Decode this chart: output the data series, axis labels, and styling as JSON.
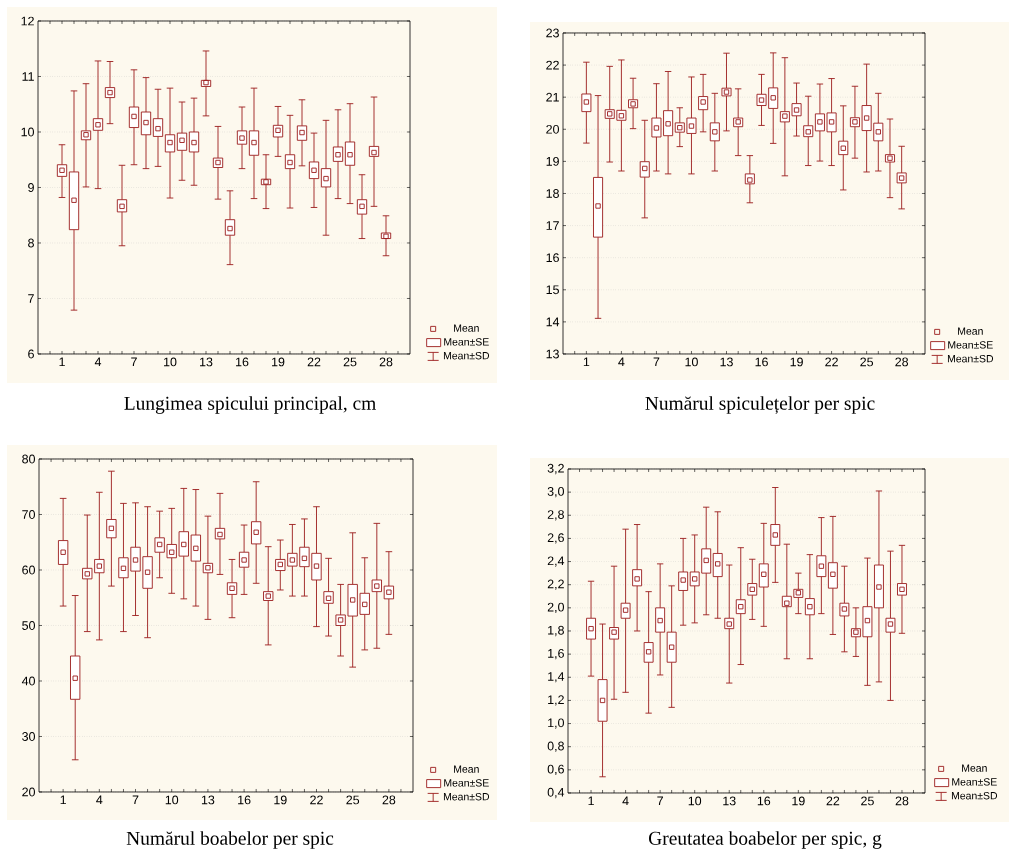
{
  "chart_data": [
    {
      "type": "box",
      "title": "Lungimea spicului principal, cm",
      "color": "#9b1c1c",
      "marker": "square",
      "grid": "y",
      "categories": [
        "1",
        null,
        null,
        "4",
        null,
        null,
        "7",
        null,
        null,
        "10",
        null,
        null,
        "13",
        null,
        null,
        "16",
        null,
        null,
        "19",
        null,
        null,
        "22",
        null,
        null,
        "25",
        null,
        null,
        "28"
      ],
      "ylim": [
        6,
        12
      ],
      "yticks": [
        6,
        7,
        8,
        9,
        10,
        11,
        12
      ],
      "annotations": [
        "Mean",
        "Mean±SE",
        "Mean±SD"
      ],
      "boxes": [
        {
          "low": 8.82,
          "q1": 9.2,
          "mean": 9.31,
          "q3": 9.41,
          "high": 9.77
        },
        {
          "low": 6.79,
          "q1": 8.24,
          "mean": 8.77,
          "q3": 9.28,
          "high": 10.74
        },
        {
          "low": 9.01,
          "q1": 9.86,
          "mean": 9.95,
          "q3": 10.02,
          "high": 10.87
        },
        {
          "low": 8.98,
          "q1": 10.03,
          "mean": 10.13,
          "q3": 10.24,
          "high": 11.28
        },
        {
          "low": 10.15,
          "q1": 10.62,
          "mean": 10.71,
          "q3": 10.8,
          "high": 11.27
        },
        {
          "low": 7.95,
          "q1": 8.56,
          "mean": 8.66,
          "q3": 8.78,
          "high": 9.4
        },
        {
          "low": 9.41,
          "q1": 10.08,
          "mean": 10.28,
          "q3": 10.45,
          "high": 11.12
        },
        {
          "low": 9.34,
          "q1": 9.95,
          "mean": 10.17,
          "q3": 10.36,
          "high": 10.98
        },
        {
          "low": 9.38,
          "q1": 9.92,
          "mean": 10.06,
          "q3": 10.24,
          "high": 10.77
        },
        {
          "low": 8.81,
          "q1": 9.64,
          "mean": 9.81,
          "q3": 9.95,
          "high": 10.79
        },
        {
          "low": 9.13,
          "q1": 9.67,
          "mean": 9.85,
          "q3": 9.98,
          "high": 10.54
        },
        {
          "low": 9.04,
          "q1": 9.64,
          "mean": 9.81,
          "q3": 10.0,
          "high": 10.61
        },
        {
          "low": 10.29,
          "q1": 10.82,
          "mean": 10.89,
          "q3": 10.93,
          "high": 11.46
        },
        {
          "low": 8.79,
          "q1": 9.36,
          "mean": 9.45,
          "q3": 9.53,
          "high": 10.1
        },
        {
          "low": 7.61,
          "q1": 8.14,
          "mean": 8.26,
          "q3": 8.42,
          "high": 8.94
        },
        {
          "low": 9.34,
          "q1": 9.78,
          "mean": 9.89,
          "q3": 10.02,
          "high": 10.45
        },
        {
          "low": 8.8,
          "q1": 9.58,
          "mean": 9.81,
          "q3": 10.02,
          "high": 10.79
        },
        {
          "low": 8.62,
          "q1": 9.05,
          "mean": 9.1,
          "q3": 9.15,
          "high": 9.59
        },
        {
          "low": 9.56,
          "q1": 9.91,
          "mean": 10.03,
          "q3": 10.12,
          "high": 10.46
        },
        {
          "low": 8.63,
          "q1": 9.34,
          "mean": 9.45,
          "q3": 9.59,
          "high": 10.3
        },
        {
          "low": 9.39,
          "q1": 9.85,
          "mean": 9.99,
          "q3": 10.11,
          "high": 10.58
        },
        {
          "low": 8.64,
          "q1": 9.16,
          "mean": 9.31,
          "q3": 9.46,
          "high": 9.98
        },
        {
          "low": 8.14,
          "q1": 9.01,
          "mean": 9.16,
          "q3": 9.34,
          "high": 10.21
        },
        {
          "low": 8.8,
          "q1": 9.47,
          "mean": 9.59,
          "q3": 9.73,
          "high": 10.4
        },
        {
          "low": 8.71,
          "q1": 9.4,
          "mean": 9.59,
          "q3": 9.82,
          "high": 10.51
        },
        {
          "low": 8.08,
          "q1": 8.52,
          "mean": 8.66,
          "q3": 8.78,
          "high": 9.23
        },
        {
          "low": 8.66,
          "q1": 9.56,
          "mean": 9.63,
          "q3": 9.74,
          "high": 10.63
        },
        {
          "low": 7.77,
          "q1": 8.08,
          "mean": 8.12,
          "q3": 8.18,
          "high": 8.49
        }
      ]
    },
    {
      "type": "box",
      "title": "Numărul spiculețelor per spic",
      "color": "#9b1c1c",
      "marker": "square",
      "grid": "y",
      "categories": [
        "1",
        null,
        null,
        "4",
        null,
        null,
        "7",
        null,
        null,
        "10",
        null,
        null,
        "13",
        null,
        null,
        "16",
        null,
        null,
        "19",
        null,
        null,
        "22",
        null,
        null,
        "25",
        null,
        null,
        "28"
      ],
      "ylim": [
        13,
        23
      ],
      "yticks": [
        13,
        14,
        15,
        16,
        17,
        18,
        19,
        20,
        21,
        22,
        23
      ],
      "annotations": [
        "Mean",
        "Mean±SE",
        "Mean±SD"
      ],
      "boxes": [
        {
          "low": 19.57,
          "q1": 20.55,
          "mean": 20.85,
          "q3": 21.1,
          "high": 22.09
        },
        {
          "low": 14.11,
          "q1": 16.64,
          "mean": 17.61,
          "q3": 18.5,
          "high": 21.05
        },
        {
          "low": 18.98,
          "q1": 20.34,
          "mean": 20.48,
          "q3": 20.61,
          "high": 21.96
        },
        {
          "low": 18.7,
          "q1": 20.28,
          "mean": 20.42,
          "q3": 20.59,
          "high": 22.16
        },
        {
          "low": 20.02,
          "q1": 20.67,
          "mean": 20.79,
          "q3": 20.92,
          "high": 21.59
        },
        {
          "low": 17.24,
          "q1": 18.51,
          "mean": 18.78,
          "q3": 18.99,
          "high": 20.28
        },
        {
          "low": 18.7,
          "q1": 19.76,
          "mean": 20.04,
          "q3": 20.35,
          "high": 21.42
        },
        {
          "low": 18.61,
          "q1": 19.8,
          "mean": 20.17,
          "q3": 20.58,
          "high": 21.8
        },
        {
          "low": 19.46,
          "q1": 19.91,
          "mean": 20.05,
          "q3": 20.2,
          "high": 20.67
        },
        {
          "low": 18.61,
          "q1": 19.87,
          "mean": 20.1,
          "q3": 20.35,
          "high": 21.63
        },
        {
          "low": 19.92,
          "q1": 20.61,
          "mean": 20.85,
          "q3": 21.02,
          "high": 21.71
        },
        {
          "low": 18.7,
          "q1": 19.64,
          "mean": 19.92,
          "q3": 20.2,
          "high": 21.12
        },
        {
          "low": 19.95,
          "q1": 21.04,
          "mean": 21.16,
          "q3": 21.28,
          "high": 22.37
        },
        {
          "low": 19.18,
          "q1": 20.08,
          "mean": 20.23,
          "q3": 20.35,
          "high": 21.26
        },
        {
          "low": 17.71,
          "q1": 18.3,
          "mean": 18.42,
          "q3": 18.61,
          "high": 19.18
        },
        {
          "low": 20.12,
          "q1": 20.74,
          "mean": 20.91,
          "q3": 21.09,
          "high": 21.71
        },
        {
          "low": 19.56,
          "q1": 20.65,
          "mean": 20.98,
          "q3": 21.29,
          "high": 22.38
        },
        {
          "low": 18.55,
          "q1": 20.23,
          "mean": 20.41,
          "q3": 20.55,
          "high": 22.23
        },
        {
          "low": 19.79,
          "q1": 20.42,
          "mean": 20.6,
          "q3": 20.8,
          "high": 21.44
        },
        {
          "low": 18.87,
          "q1": 19.77,
          "mean": 19.92,
          "q3": 20.11,
          "high": 21.03
        },
        {
          "low": 19.01,
          "q1": 19.95,
          "mean": 20.23,
          "q3": 20.48,
          "high": 21.41
        },
        {
          "low": 18.87,
          "q1": 19.92,
          "mean": 20.23,
          "q3": 20.51,
          "high": 21.58
        },
        {
          "low": 18.11,
          "q1": 19.21,
          "mean": 19.41,
          "q3": 19.63,
          "high": 20.73
        },
        {
          "low": 19.1,
          "q1": 20.08,
          "mean": 20.23,
          "q3": 20.36,
          "high": 21.34
        },
        {
          "low": 18.67,
          "q1": 19.96,
          "mean": 20.35,
          "q3": 20.74,
          "high": 22.03
        },
        {
          "low": 18.7,
          "q1": 19.64,
          "mean": 19.92,
          "q3": 20.19,
          "high": 21.12
        },
        {
          "low": 17.87,
          "q1": 18.98,
          "mean": 19.1,
          "q3": 19.21,
          "high": 20.32
        },
        {
          "low": 17.52,
          "q1": 18.33,
          "mean": 18.48,
          "q3": 18.64,
          "high": 19.47
        }
      ]
    },
    {
      "type": "box",
      "title": "Numărul boabelor per spic",
      "color": "#9b1c1c",
      "marker": "square",
      "grid": "y",
      "categories": [
        "1",
        null,
        null,
        "4",
        null,
        null,
        "7",
        null,
        null,
        "10",
        null,
        null,
        "13",
        null,
        null,
        "16",
        null,
        null,
        "19",
        null,
        null,
        "22",
        null,
        null,
        "25",
        null,
        null,
        "28"
      ],
      "ylim": [
        20,
        80
      ],
      "yticks": [
        20,
        30,
        40,
        50,
        60,
        70,
        80
      ],
      "annotations": [
        "Mean",
        "Mean±SE",
        "Mean±SD"
      ],
      "boxes": [
        {
          "low": 53.5,
          "q1": 61.0,
          "mean": 63.2,
          "q3": 65.3,
          "high": 72.9
        },
        {
          "low": 25.8,
          "q1": 36.7,
          "mean": 40.5,
          "q3": 44.5,
          "high": 55.4
        },
        {
          "low": 48.9,
          "q1": 58.4,
          "mean": 59.3,
          "q3": 60.3,
          "high": 69.9
        },
        {
          "low": 47.4,
          "q1": 59.5,
          "mean": 60.7,
          "q3": 61.9,
          "high": 74.0
        },
        {
          "low": 57.1,
          "q1": 65.8,
          "mean": 67.5,
          "q3": 69.1,
          "high": 77.8
        },
        {
          "low": 48.9,
          "q1": 58.6,
          "mean": 60.3,
          "q3": 62.2,
          "high": 72.0
        },
        {
          "low": 51.8,
          "q1": 59.8,
          "mean": 61.8,
          "q3": 64.1,
          "high": 72.1
        },
        {
          "low": 47.8,
          "q1": 56.7,
          "mean": 59.6,
          "q3": 62.4,
          "high": 71.4
        },
        {
          "low": 58.6,
          "q1": 63.2,
          "mean": 64.6,
          "q3": 65.8,
          "high": 70.6
        },
        {
          "low": 55.8,
          "q1": 62.2,
          "mean": 63.2,
          "q3": 64.6,
          "high": 71.1
        },
        {
          "low": 54.8,
          "q1": 62.5,
          "mean": 64.6,
          "q3": 66.9,
          "high": 74.7
        },
        {
          "low": 53.5,
          "q1": 61.6,
          "mean": 63.9,
          "q3": 66.3,
          "high": 74.5
        },
        {
          "low": 51.1,
          "q1": 59.5,
          "mean": 60.4,
          "q3": 61.2,
          "high": 69.7
        },
        {
          "low": 59.2,
          "q1": 65.6,
          "mean": 66.4,
          "q3": 67.5,
          "high": 73.8
        },
        {
          "low": 51.4,
          "q1": 55.6,
          "mean": 56.7,
          "q3": 57.7,
          "high": 61.9
        },
        {
          "low": 55.6,
          "q1": 60.5,
          "mean": 61.8,
          "q3": 63.2,
          "high": 68.1
        },
        {
          "low": 57.6,
          "q1": 64.7,
          "mean": 66.8,
          "q3": 68.7,
          "high": 75.9
        },
        {
          "low": 46.5,
          "q1": 54.5,
          "mean": 55.3,
          "q3": 56.1,
          "high": 64.2
        },
        {
          "low": 56.4,
          "q1": 59.9,
          "mean": 61.0,
          "q3": 61.9,
          "high": 65.4
        },
        {
          "low": 55.3,
          "q1": 60.7,
          "mean": 61.8,
          "q3": 63.0,
          "high": 68.2
        },
        {
          "low": 55.3,
          "q1": 60.6,
          "mean": 62.1,
          "q3": 64.1,
          "high": 69.2
        },
        {
          "low": 49.8,
          "q1": 58.2,
          "mean": 60.7,
          "q3": 63.0,
          "high": 71.4
        },
        {
          "low": 48.1,
          "q1": 54.0,
          "mean": 54.9,
          "q3": 56.1,
          "high": 62.1
        },
        {
          "low": 44.5,
          "q1": 50.0,
          "mean": 51.0,
          "q3": 51.9,
          "high": 57.4
        },
        {
          "low": 42.5,
          "q1": 51.7,
          "mean": 54.6,
          "q3": 57.4,
          "high": 66.7
        },
        {
          "low": 45.6,
          "q1": 52.0,
          "mean": 53.8,
          "q3": 55.8,
          "high": 62.2
        },
        {
          "low": 45.9,
          "q1": 56.1,
          "mean": 57.1,
          "q3": 58.2,
          "high": 68.4
        },
        {
          "low": 48.4,
          "q1": 54.8,
          "mean": 56.0,
          "q3": 57.1,
          "high": 63.3
        }
      ]
    },
    {
      "type": "box",
      "title": "Greutatea boabelor per spic, g",
      "color": "#9b1c1c",
      "marker": "square",
      "grid": "y",
      "categories": [
        "1",
        null,
        null,
        "4",
        null,
        null,
        "7",
        null,
        null,
        "10",
        null,
        null,
        "13",
        null,
        null,
        "16",
        null,
        null,
        "19",
        null,
        null,
        "22",
        null,
        null,
        "25",
        null,
        null,
        "28"
      ],
      "ylim": [
        0.4,
        3.2
      ],
      "yticks": [
        {
          "value": 0.4,
          "label": "0,4"
        },
        {
          "value": 0.6,
          "label": "0,6"
        },
        {
          "value": 0.8,
          "label": "0,8"
        },
        {
          "value": 1.0,
          "label": "1,0"
        },
        {
          "value": 1.2,
          "label": "1,2"
        },
        {
          "value": 1.4,
          "label": "1,4"
        },
        {
          "value": 1.6,
          "label": "1,6"
        },
        {
          "value": 1.8,
          "label": "1,8"
        },
        {
          "value": 2.0,
          "label": "2,0"
        },
        {
          "value": 2.2,
          "label": "2,2"
        },
        {
          "value": 2.4,
          "label": "2,4"
        },
        {
          "value": 2.6,
          "label": "2,6"
        },
        {
          "value": 2.8,
          "label": "2,8"
        },
        {
          "value": 3.0,
          "label": "3,0"
        },
        {
          "value": 3.2,
          "label": "3,2"
        }
      ],
      "annotations": [
        "Mean",
        "Mean±SE",
        "Mean±SD"
      ],
      "boxes": [
        {
          "low": 1.41,
          "q1": 1.73,
          "mean": 1.82,
          "q3": 1.91,
          "high": 2.23
        },
        {
          "low": 0.54,
          "q1": 1.02,
          "mean": 1.2,
          "q3": 1.38,
          "high": 1.86
        },
        {
          "low": 1.21,
          "q1": 1.73,
          "mean": 1.79,
          "q3": 1.83,
          "high": 2.36
        },
        {
          "low": 1.27,
          "q1": 1.91,
          "mean": 1.98,
          "q3": 2.04,
          "high": 2.68
        },
        {
          "low": 1.8,
          "q1": 2.19,
          "mean": 2.25,
          "q3": 2.33,
          "high": 2.72
        },
        {
          "low": 1.09,
          "q1": 1.53,
          "mean": 1.62,
          "q3": 1.7,
          "high": 2.14
        },
        {
          "low": 1.42,
          "q1": 1.79,
          "mean": 1.89,
          "q3": 2.0,
          "high": 2.38
        },
        {
          "low": 1.14,
          "q1": 1.53,
          "mean": 1.66,
          "q3": 1.79,
          "high": 2.19
        },
        {
          "low": 1.85,
          "q1": 2.15,
          "mean": 2.24,
          "q3": 2.31,
          "high": 2.6
        },
        {
          "low": 1.87,
          "q1": 2.19,
          "mean": 2.25,
          "q3": 2.31,
          "high": 2.63
        },
        {
          "low": 1.94,
          "q1": 2.3,
          "mean": 2.41,
          "q3": 2.51,
          "high": 2.87
        },
        {
          "low": 1.91,
          "q1": 2.27,
          "mean": 2.38,
          "q3": 2.47,
          "high": 2.83
        },
        {
          "low": 1.35,
          "q1": 1.82,
          "mean": 1.86,
          "q3": 1.91,
          "high": 2.37
        },
        {
          "low": 1.51,
          "q1": 1.95,
          "mean": 2.01,
          "q3": 2.07,
          "high": 2.52
        },
        {
          "low": 1.9,
          "q1": 2.11,
          "mean": 2.16,
          "q3": 2.21,
          "high": 2.42
        },
        {
          "low": 1.84,
          "q1": 2.18,
          "mean": 2.29,
          "q3": 2.38,
          "high": 2.73
        },
        {
          "low": 2.22,
          "q1": 2.54,
          "mean": 2.63,
          "q3": 2.72,
          "high": 3.04
        },
        {
          "low": 1.56,
          "q1": 2.01,
          "mean": 2.04,
          "q3": 2.1,
          "high": 2.55
        },
        {
          "low": 1.95,
          "q1": 2.09,
          "mean": 2.13,
          "q3": 2.16,
          "high": 2.3
        },
        {
          "low": 1.56,
          "q1": 1.94,
          "mean": 2.01,
          "q3": 2.08,
          "high": 2.46
        },
        {
          "low": 1.95,
          "q1": 2.27,
          "mean": 2.36,
          "q3": 2.45,
          "high": 2.78
        },
        {
          "low": 1.77,
          "q1": 2.17,
          "mean": 2.29,
          "q3": 2.39,
          "high": 2.79
        },
        {
          "low": 1.62,
          "q1": 1.93,
          "mean": 1.99,
          "q3": 2.04,
          "high": 2.36
        },
        {
          "low": 1.58,
          "q1": 1.75,
          "mean": 1.79,
          "q3": 1.82,
          "high": 2.0
        },
        {
          "low": 1.33,
          "q1": 1.75,
          "mean": 1.89,
          "q3": 2.01,
          "high": 2.43
        },
        {
          "low": 1.36,
          "q1": 2.0,
          "mean": 2.18,
          "q3": 2.37,
          "high": 3.01
        },
        {
          "low": 1.2,
          "q1": 1.79,
          "mean": 1.86,
          "q3": 1.91,
          "high": 2.49
        },
        {
          "low": 1.78,
          "q1": 2.11,
          "mean": 2.16,
          "q3": 2.21,
          "high": 2.54
        }
      ]
    }
  ]
}
